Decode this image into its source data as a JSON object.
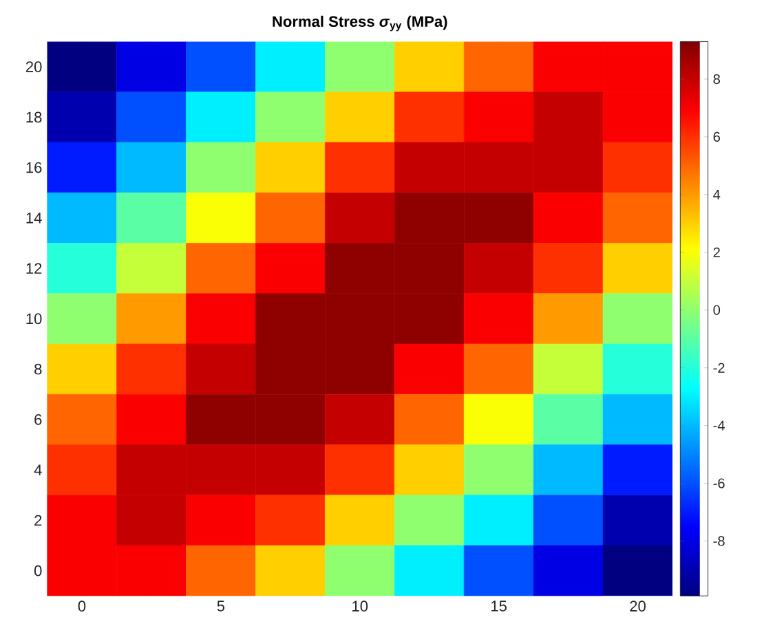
{
  "chart_data": {
    "type": "heatmap",
    "title": "Normal Stress *σ*$_{yy}$ (MPa)",
    "categories": [
      "0",
      null,
      "5",
      null,
      "10",
      null,
      "15",
      null,
      "20"
    ],
    "y_categories": [
      "20",
      "18",
      "16",
      "14",
      "12",
      "10",
      "8",
      "6",
      "4",
      "2",
      "0"
    ],
    "clim": [
      -9.9,
      9.3
    ],
    "cticks": [
      -8,
      -6,
      -4,
      -2,
      0,
      2,
      4,
      6,
      8
    ],
    "cells": [
      [
        -9.9,
        -8,
        -6,
        -3,
        0,
        3,
        5,
        7,
        7
      ],
      [
        -9,
        -6,
        -3,
        0,
        3,
        6,
        7,
        8,
        7
      ],
      [
        -7,
        -4,
        0,
        3,
        6,
        8,
        8,
        8,
        6
      ],
      [
        -4,
        -1,
        2,
        5,
        8,
        9,
        9,
        7,
        5
      ],
      [
        -2,
        1,
        5,
        7,
        9,
        9,
        8,
        6,
        3
      ],
      [
        0,
        4,
        7,
        9,
        9,
        9,
        7,
        4,
        0
      ],
      [
        3,
        6,
        8,
        9,
        9,
        7,
        5,
        1,
        -2
      ],
      [
        5,
        7,
        9,
        9,
        8,
        5,
        2,
        -1,
        -4
      ],
      [
        6,
        8,
        8,
        8,
        6,
        3,
        0,
        -4,
        -7
      ],
      [
        7,
        8,
        7,
        6,
        3,
        0,
        -3,
        -6,
        -9
      ],
      [
        7,
        7,
        5,
        3,
        0,
        -3,
        -6,
        -8,
        -9.9
      ]
    ]
  }
}
